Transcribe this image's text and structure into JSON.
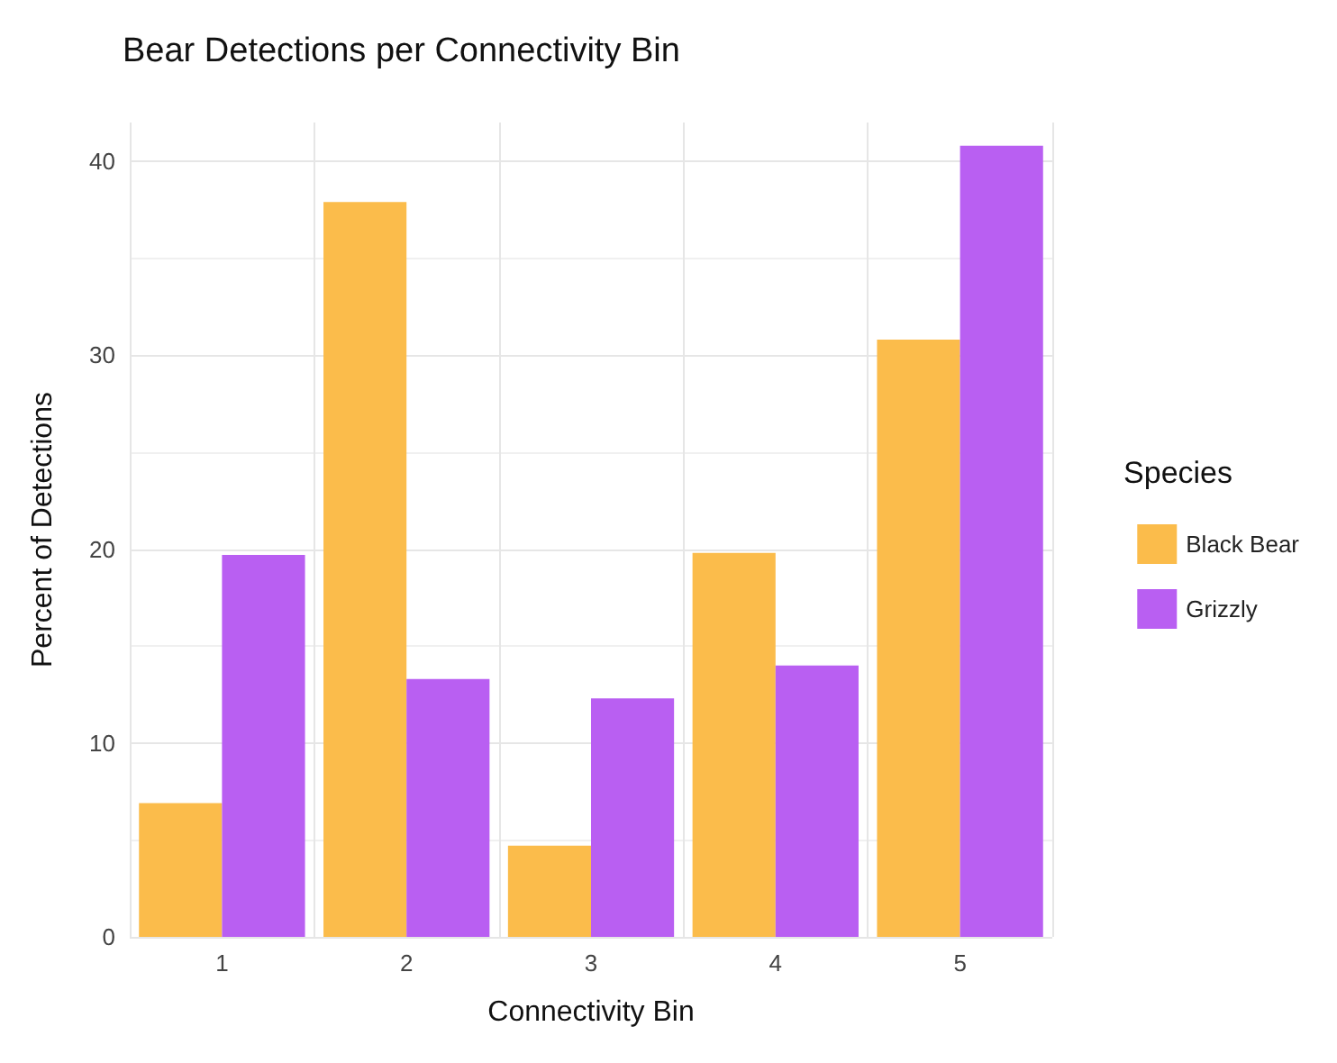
{
  "chart_data": {
    "type": "bar",
    "title": "Bear Detections per Connectivity Bin",
    "xlabel": "Connectivity Bin",
    "ylabel": "Percent of Detections",
    "legend_title": "Species",
    "categories": [
      "1",
      "2",
      "3",
      "4",
      "5"
    ],
    "series": [
      {
        "name": "Black Bear",
        "color": "#fbbc4b",
        "values": [
          6.9,
          37.9,
          4.7,
          19.8,
          30.8
        ]
      },
      {
        "name": "Grizzly",
        "color": "#b95ff2",
        "values": [
          19.7,
          13.3,
          12.3,
          14.0,
          40.8
        ]
      }
    ],
    "ylim": [
      0,
      42
    ],
    "yticks": [
      0,
      10,
      20,
      30,
      40
    ],
    "grid": true,
    "legend": "right"
  }
}
